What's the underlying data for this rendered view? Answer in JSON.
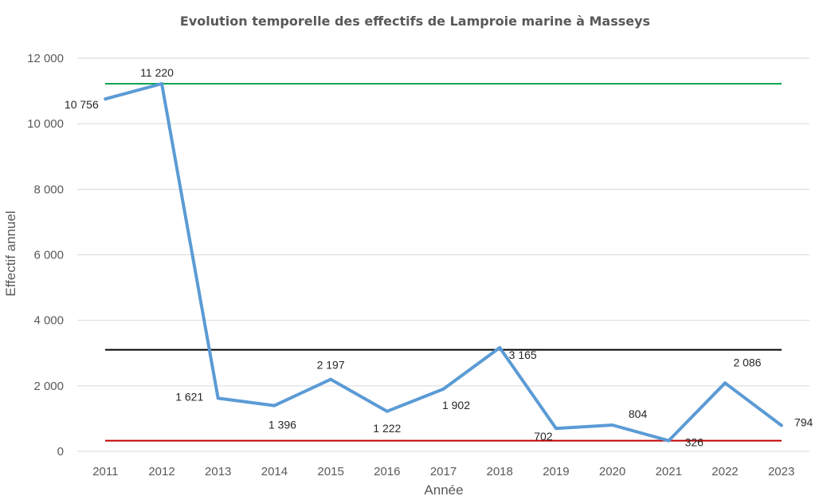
{
  "chart_data": {
    "type": "line",
    "title": "Evolution temporelle des effectifs de Lamproie marine à Masseys",
    "xlabel": "Année",
    "ylabel": "Effectif annuel",
    "ylim": [
      0,
      12000
    ],
    "yticks": [
      0,
      2000,
      4000,
      6000,
      8000,
      10000,
      12000
    ],
    "ytick_labels": [
      "0",
      "2 000",
      "4 000",
      "6 000",
      "8 000",
      "10 000",
      "12 000"
    ],
    "grid": true,
    "categories": [
      "2011",
      "2012",
      "2013",
      "2014",
      "2015",
      "2016",
      "2017",
      "2018",
      "2019",
      "2020",
      "2021",
      "2022",
      "2023"
    ],
    "series": [
      {
        "values": [
          10756,
          11220,
          1621,
          1396,
          2197,
          1222,
          1902,
          3165,
          702,
          804,
          326,
          2086,
          794
        ],
        "labels": [
          "10 756",
          "11 220",
          "1 621",
          "1 396",
          "2 197",
          "1 222",
          "1 902",
          "3 165",
          "702",
          "804",
          "326",
          "2 086",
          "794"
        ],
        "color": "#5b9bd5"
      }
    ],
    "reference_lines": [
      {
        "value": 11220,
        "color": "#00a550"
      },
      {
        "value": 3100,
        "color": "#000000"
      },
      {
        "value": 326,
        "color": "#c00000"
      }
    ]
  }
}
